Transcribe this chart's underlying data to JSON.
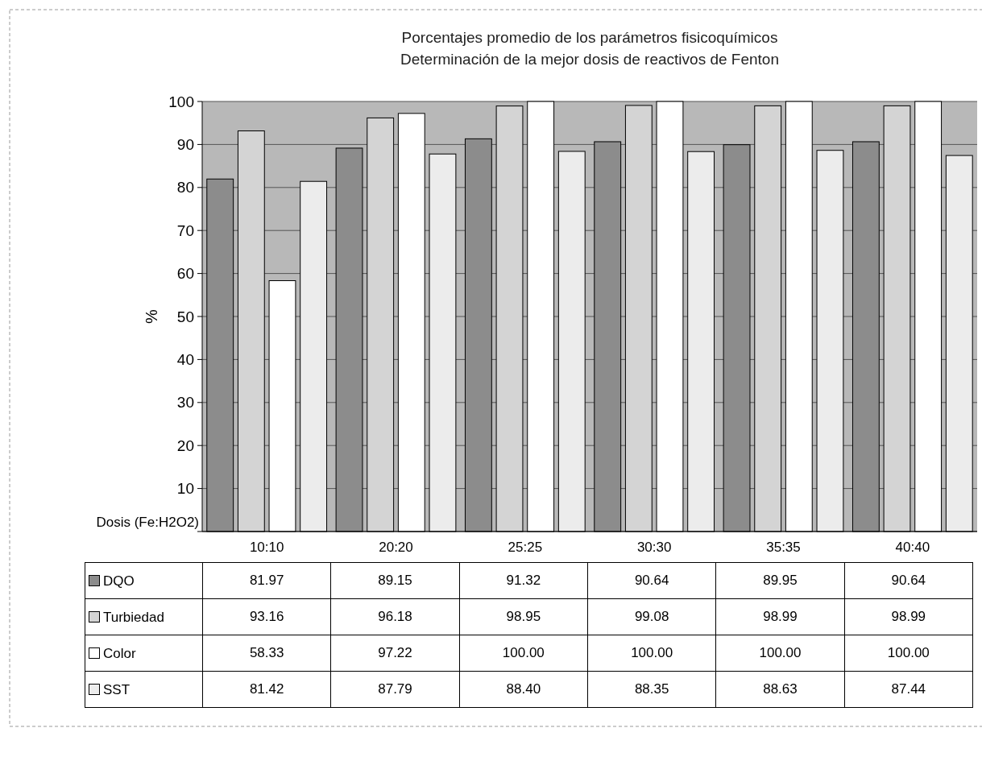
{
  "chart_data": {
    "type": "bar",
    "title": "Porcentajes promedio de los parámetros fisicoquímicos",
    "subtitle": "Determinación de la mejor dosis de reactivos de Fenton",
    "xlabel": "Dosis (Fe:H2O2)",
    "ylabel": "%",
    "categories": [
      "10:10",
      "20:20",
      "25:25",
      "30:30",
      "35:35",
      "40:40"
    ],
    "series": [
      {
        "name": "DQO",
        "color": "#8c8c8c",
        "values": [
          81.97,
          89.15,
          91.32,
          90.64,
          89.95,
          90.64
        ],
        "value_labels": [
          "81.97",
          "89.15",
          "91.32",
          "90.64",
          "89.95",
          "90.64"
        ]
      },
      {
        "name": "Turbiedad",
        "color": "#d4d4d4",
        "values": [
          93.16,
          96.18,
          98.95,
          99.08,
          98.99,
          98.99
        ],
        "value_labels": [
          "93.16",
          "96.18",
          "98.95",
          "99.08",
          "98.99",
          "98.99"
        ]
      },
      {
        "name": "Color",
        "color": "#ffffff",
        "values": [
          58.33,
          97.22,
          100,
          100,
          100,
          100
        ],
        "value_labels": [
          "58.33",
          "97.22",
          "100.00",
          "100.00",
          "100.00",
          "100.00"
        ]
      },
      {
        "name": "SST",
        "color": "#ececec",
        "values": [
          81.42,
          87.79,
          88.4,
          88.35,
          88.63,
          87.44
        ],
        "value_labels": [
          "81.42",
          "87.79",
          "88.40",
          "88.35",
          "88.63",
          "87.44"
        ]
      }
    ],
    "ylim": [
      0,
      100
    ],
    "yticks": [
      {
        "value": 0,
        "label": null
      },
      10,
      20,
      30,
      40,
      50,
      60,
      70,
      80,
      90,
      100
    ],
    "grid": "y",
    "legend": "bottom"
  }
}
